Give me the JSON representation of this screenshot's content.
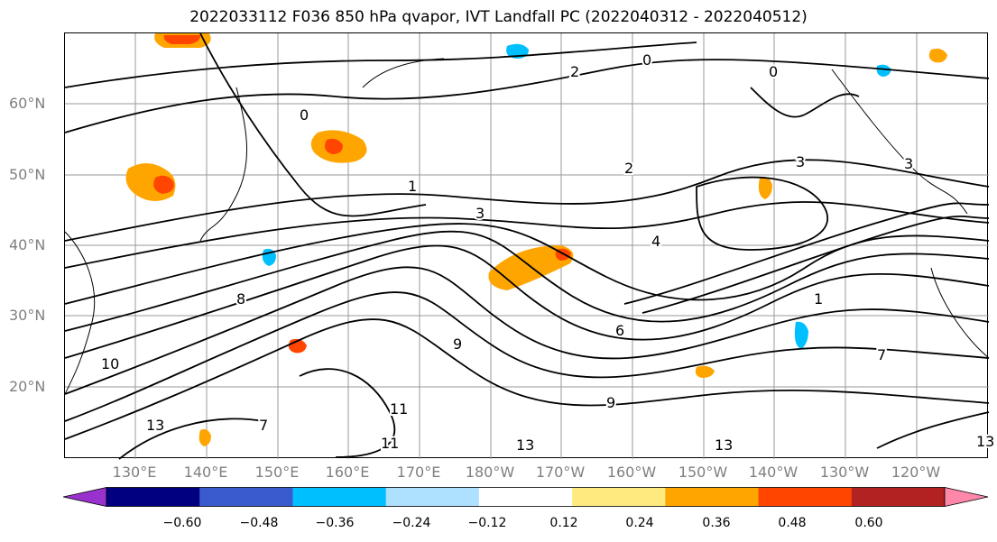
{
  "title": "2022033112 F036 850 hPa qvapor, IVT Landfall PC (2022040312 - 2022040512)",
  "lat_labels": [
    "60°N",
    "50°N",
    "40°N",
    "30°N",
    "20°N"
  ],
  "lon_labels": [
    "130°E",
    "140°E",
    "150°E",
    "160°E",
    "170°E",
    "180°W",
    "170°W",
    "160°W",
    "150°W",
    "140°W",
    "130°W",
    "120°W"
  ],
  "colorbar": {
    "tick_labels": [
      "−0.60",
      "−0.48",
      "−0.36",
      "−0.24",
      "−0.12",
      "0.12",
      "0.24",
      "0.36",
      "0.48",
      "0.60"
    ],
    "colors": [
      "#9932cc",
      "#000080",
      "#3a5bcd",
      "#00bfff",
      "#aee0ff",
      "#ffffff",
      "#ffea80",
      "#ffa500",
      "#ff4500",
      "#b22222",
      "#ff88aa"
    ],
    "extend": "both"
  },
  "contour_labels": [
    {
      "text": "0"
    },
    {
      "text": "0"
    },
    {
      "text": "2"
    },
    {
      "text": "0"
    },
    {
      "text": "2"
    },
    {
      "text": "1"
    },
    {
      "text": "3"
    },
    {
      "text": "3"
    },
    {
      "text": "4"
    },
    {
      "text": "1"
    },
    {
      "text": "3"
    },
    {
      "text": "7"
    },
    {
      "text": "6"
    },
    {
      "text": "9"
    },
    {
      "text": "10"
    },
    {
      "text": "8"
    },
    {
      "text": "11"
    },
    {
      "text": "9"
    },
    {
      "text": "11"
    },
    {
      "text": "13"
    },
    {
      "text": "13"
    },
    {
      "text": "13"
    },
    {
      "text": "7"
    },
    {
      "text": "13"
    }
  ]
}
